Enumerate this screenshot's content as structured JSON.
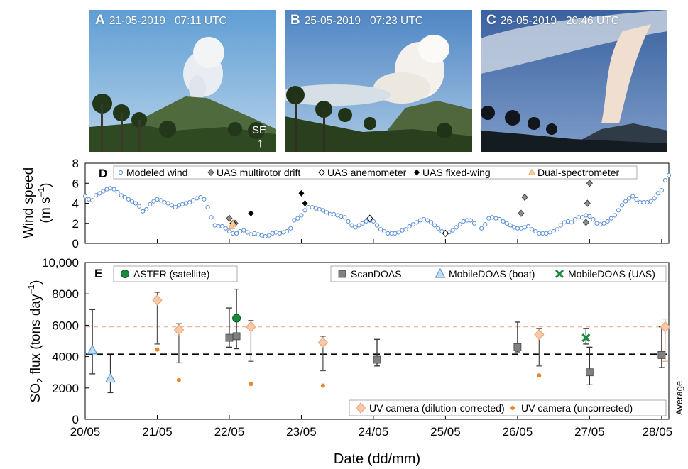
{
  "photos": [
    {
      "letter": "A",
      "caption": "21-05-2019   07:11 UTC",
      "direction": "SE",
      "arrow": "↑"
    },
    {
      "letter": "B",
      "caption": "25-05-2019   07:23 UTC"
    },
    {
      "letter": "C",
      "caption": "26-05-2019   20:46 UTC"
    }
  ],
  "chart_data": [
    {
      "panel": "D",
      "type": "scatter",
      "ylabel_line1": "Wind speed",
      "ylabel_line2": "(m s",
      "ylabel_sup": "−1",
      "ylabel_close": ")",
      "xlim": [
        20,
        28.1
      ],
      "ylim": [
        0,
        8
      ],
      "yticks": [
        0,
        2,
        4,
        6,
        8
      ],
      "legend": "top, inside",
      "series": [
        {
          "name": "Modeled wind",
          "marker": "open-circle",
          "color": "#5b8fd6",
          "values": [
            [
              20.0,
              4.7
            ],
            [
              20.05,
              4.4
            ],
            [
              20.1,
              4.3
            ],
            [
              20.15,
              4.8
            ],
            [
              20.2,
              5.0
            ],
            [
              20.25,
              5.2
            ],
            [
              20.3,
              5.4
            ],
            [
              20.35,
              5.5
            ],
            [
              20.4,
              5.4
            ],
            [
              20.45,
              5.1
            ],
            [
              20.5,
              4.8
            ],
            [
              20.55,
              4.6
            ],
            [
              20.6,
              4.4
            ],
            [
              20.65,
              4.2
            ],
            [
              20.7,
              4.0
            ],
            [
              20.75,
              3.7
            ],
            [
              20.8,
              3.2
            ],
            [
              20.85,
              3.4
            ],
            [
              20.9,
              3.9
            ],
            [
              20.95,
              4.2
            ],
            [
              21.0,
              4.4
            ],
            [
              21.05,
              4.3
            ],
            [
              21.1,
              4.1
            ],
            [
              21.15,
              4.0
            ],
            [
              21.2,
              3.8
            ],
            [
              21.25,
              3.6
            ],
            [
              21.3,
              3.8
            ],
            [
              21.35,
              3.9
            ],
            [
              21.4,
              4.0
            ],
            [
              21.45,
              4.1
            ],
            [
              21.5,
              4.3
            ],
            [
              21.55,
              4.5
            ],
            [
              21.6,
              4.6
            ],
            [
              21.65,
              4.4
            ],
            [
              21.7,
              3.6
            ],
            [
              21.75,
              2.6
            ],
            [
              21.8,
              1.8
            ],
            [
              21.85,
              1.7
            ],
            [
              21.9,
              1.7
            ],
            [
              21.95,
              1.5
            ],
            [
              22.0,
              1.2
            ],
            [
              22.05,
              1.0
            ],
            [
              22.1,
              1.0
            ],
            [
              22.15,
              1.2
            ],
            [
              22.2,
              1.3
            ],
            [
              22.25,
              1.1
            ],
            [
              22.3,
              0.9
            ],
            [
              22.35,
              1.0
            ],
            [
              22.4,
              0.9
            ],
            [
              22.45,
              0.8
            ],
            [
              22.5,
              0.7
            ],
            [
              22.55,
              0.8
            ],
            [
              22.6,
              1.0
            ],
            [
              22.65,
              1.1
            ],
            [
              22.7,
              1.0
            ],
            [
              22.75,
              1.1
            ],
            [
              22.8,
              1.2
            ],
            [
              22.85,
              1.5
            ],
            [
              22.9,
              2.3
            ],
            [
              22.95,
              2.5
            ],
            [
              23.0,
              2.8
            ],
            [
              23.05,
              3.3
            ],
            [
              23.1,
              3.6
            ],
            [
              23.15,
              3.6
            ],
            [
              23.2,
              3.5
            ],
            [
              23.25,
              3.4
            ],
            [
              23.3,
              3.3
            ],
            [
              23.35,
              3.1
            ],
            [
              23.4,
              2.9
            ],
            [
              23.45,
              2.9
            ],
            [
              23.5,
              2.8
            ],
            [
              23.55,
              2.7
            ],
            [
              23.6,
              2.6
            ],
            [
              23.65,
              2.2
            ],
            [
              23.7,
              1.8
            ],
            [
              23.75,
              1.6
            ],
            [
              23.8,
              1.8
            ],
            [
              23.85,
              2.0
            ],
            [
              23.9,
              2.2
            ],
            [
              23.95,
              2.3
            ],
            [
              24.0,
              2.2
            ],
            [
              24.05,
              1.8
            ],
            [
              24.1,
              1.4
            ],
            [
              24.15,
              1.2
            ],
            [
              24.2,
              1.0
            ],
            [
              24.25,
              1.0
            ],
            [
              24.3,
              1.0
            ],
            [
              24.35,
              1.1
            ],
            [
              24.4,
              1.3
            ],
            [
              24.45,
              1.4
            ],
            [
              24.5,
              1.7
            ],
            [
              24.55,
              1.9
            ],
            [
              24.6,
              2.1
            ],
            [
              24.65,
              2.3
            ],
            [
              24.7,
              2.4
            ],
            [
              24.75,
              2.3
            ],
            [
              24.8,
              2.1
            ],
            [
              24.85,
              1.8
            ],
            [
              24.9,
              1.5
            ],
            [
              24.95,
              1.2
            ],
            [
              25.0,
              1.0
            ],
            [
              25.05,
              1.1
            ],
            [
              25.1,
              1.3
            ],
            [
              25.15,
              1.6
            ],
            [
              25.2,
              1.9
            ],
            [
              25.25,
              2.2
            ],
            [
              25.3,
              2.3
            ],
            [
              25.35,
              2.3
            ],
            [
              25.4,
              2.0
            ],
            [
              25.5,
              1.5
            ],
            [
              25.55,
              1.9
            ],
            [
              25.6,
              2.5
            ],
            [
              25.65,
              2.6
            ],
            [
              25.7,
              2.5
            ],
            [
              25.75,
              2.4
            ],
            [
              25.8,
              2.2
            ],
            [
              25.85,
              2.0
            ],
            [
              25.9,
              1.8
            ],
            [
              25.95,
              1.6
            ],
            [
              26.0,
              1.5
            ],
            [
              26.05,
              1.5
            ],
            [
              26.1,
              1.6
            ],
            [
              26.15,
              1.7
            ],
            [
              26.2,
              1.4
            ],
            [
              26.25,
              1.2
            ],
            [
              26.3,
              1.0
            ],
            [
              26.35,
              1.0
            ],
            [
              26.4,
              1.0
            ],
            [
              26.45,
              1.1
            ],
            [
              26.5,
              1.2
            ],
            [
              26.55,
              1.4
            ],
            [
              26.6,
              1.8
            ],
            [
              26.65,
              2.1
            ],
            [
              26.7,
              2.2
            ],
            [
              26.75,
              2.1
            ],
            [
              26.8,
              2.4
            ],
            [
              26.85,
              2.6
            ],
            [
              26.9,
              2.6
            ],
            [
              26.95,
              2.8
            ],
            [
              27.0,
              2.7
            ],
            [
              27.05,
              2.4
            ],
            [
              27.1,
              2.0
            ],
            [
              27.15,
              1.9
            ],
            [
              27.2,
              2.0
            ],
            [
              27.25,
              2.2
            ],
            [
              27.3,
              2.5
            ],
            [
              27.35,
              2.8
            ],
            [
              27.4,
              3.3
            ],
            [
              27.45,
              3.8
            ],
            [
              27.5,
              4.2
            ],
            [
              27.55,
              4.5
            ],
            [
              27.6,
              4.7
            ],
            [
              27.65,
              4.4
            ],
            [
              27.7,
              4.1
            ],
            [
              27.75,
              4.1
            ],
            [
              27.8,
              4.1
            ],
            [
              27.85,
              4.2
            ],
            [
              27.9,
              4.5
            ],
            [
              27.95,
              5.0
            ],
            [
              28.0,
              5.3
            ],
            [
              28.05,
              6.3
            ],
            [
              28.1,
              6.8
            ]
          ]
        },
        {
          "name": "UAS multirotor drift",
          "marker": "gray-diamond",
          "color": "#8c8c8c",
          "values": [
            [
              22.0,
              2.5
            ],
            [
              22.08,
              2.0
            ],
            [
              26.05,
              3.0
            ],
            [
              26.1,
              4.6
            ],
            [
              26.95,
              2.1
            ],
            [
              26.97,
              4.0
            ],
            [
              27.0,
              6.0
            ]
          ]
        },
        {
          "name": "UAS anemometer",
          "marker": "open-diamond",
          "color": "#000000",
          "values": [
            [
              22.05,
              2.0
            ],
            [
              23.95,
              2.5
            ],
            [
              25.0,
              1.0
            ]
          ]
        },
        {
          "name": "UAS fixed-wing",
          "marker": "black-diamond",
          "color": "#000000",
          "values": [
            [
              22.3,
              3.0
            ],
            [
              23.0,
              5.0
            ],
            [
              23.05,
              4.0
            ]
          ]
        },
        {
          "name": "Dual-spectrometer",
          "marker": "triangle",
          "color": "#f4a460",
          "values": [
            [
              22.03,
              1.7
            ],
            [
              22.05,
              2.0
            ]
          ]
        }
      ]
    },
    {
      "panel": "E",
      "type": "scatter",
      "ylabel_pre": "SO",
      "ylabel_sub": "2",
      "ylabel_mid": " flux (tons day",
      "ylabel_sup": "−1",
      "ylabel_close": ")",
      "xlabel": "Date (dd/mm)",
      "xticks": [
        "20/05",
        "21/05",
        "22/05",
        "23/05",
        "24/05",
        "25/05",
        "26/05",
        "27/05",
        "28/05"
      ],
      "xlim": [
        20,
        28.1
      ],
      "ylim": [
        0,
        10000
      ],
      "yticks": [
        "0",
        "2000",
        "4000",
        "6000",
        "8000",
        "10,000"
      ],
      "average_label": "Average",
      "reference_lines": [
        {
          "y": 4150,
          "style": "black-dashed"
        },
        {
          "y": 5900,
          "style": "orange-dashed"
        }
      ],
      "series": [
        {
          "name": "ASTER (satellite)",
          "marker": "green-circle",
          "color": "#1a8a3c",
          "values": [
            [
              22.1,
              6450
            ]
          ]
        },
        {
          "name": "ScanDOAS",
          "marker": "gray-square",
          "color": "#808080",
          "values": [
            [
              22.0,
              5200,
              4600,
              7100
            ],
            [
              22.1,
              5300,
              4500,
              8300
            ],
            [
              24.05,
              3800,
              3400,
              5100
            ],
            [
              26.0,
              4600,
              4300,
              6200
            ],
            [
              27.0,
              3000,
              2200,
              4600
            ],
            [
              28.0,
              4100,
              3300,
              5900
            ]
          ]
        },
        {
          "name": "MobileDOAS (boat)",
          "marker": "blue-triangle",
          "color": "#5b9bd5",
          "values": [
            [
              20.1,
              4400,
              2900,
              7000
            ],
            [
              20.35,
              2600,
              1700,
              4100
            ]
          ]
        },
        {
          "name": "MobileDOAS (UAS)",
          "marker": "green-x",
          "color": "#1a8a3c",
          "values": [
            [
              26.95,
              5200,
              4800,
              5800
            ]
          ]
        },
        {
          "name": "UV camera (dilution-corrected)",
          "marker": "peach-diamond",
          "color": "#f5b48c",
          "values": [
            [
              21.0,
              7600,
              4800,
              8100
            ],
            [
              21.3,
              5700,
              3600,
              6100
            ],
            [
              22.3,
              5900,
              3700,
              6300
            ],
            [
              23.3,
              4900,
              3100,
              5300
            ],
            [
              26.3,
              5400,
              3400,
              5800
            ],
            [
              28.05,
              5900,
              3700,
              6400
            ]
          ]
        },
        {
          "name": "UV camera (uncorrected)",
          "marker": "orange-dot",
          "color": "#e8862a",
          "values": [
            [
              21.0,
              4450
            ],
            [
              21.3,
              2500
            ],
            [
              22.3,
              2250
            ],
            [
              23.3,
              2150
            ],
            [
              26.3,
              2800
            ]
          ]
        }
      ]
    }
  ]
}
